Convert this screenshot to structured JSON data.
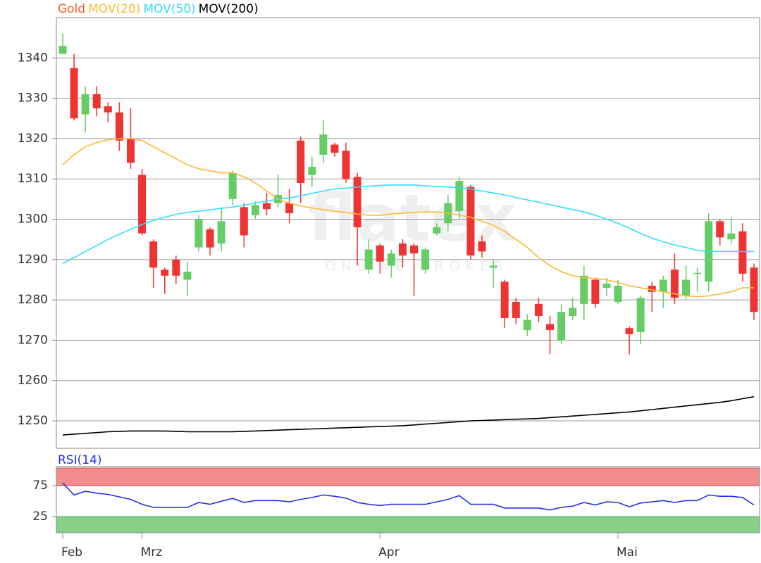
{
  "chart_data": [
    {
      "type": "candlestick",
      "categories": [
        "Feb",
        null,
        null,
        null,
        null,
        null,
        null,
        "Mrz",
        null,
        null,
        null,
        null,
        null,
        null,
        null,
        null,
        null,
        null,
        null,
        null,
        null,
        null,
        null,
        null,
        null,
        null,
        null,
        null,
        "Apr",
        null,
        null,
        null,
        null,
        null,
        null,
        null,
        null,
        null,
        null,
        null,
        null,
        null,
        null,
        null,
        null,
        null,
        null,
        null,
        null,
        "Mai",
        null,
        null,
        null,
        null,
        null,
        null,
        null,
        null,
        null,
        null,
        null,
        null
      ],
      "ylim": [
        1243.2,
        1350
      ],
      "yticks": [
        1250,
        1260,
        1270,
        1280,
        1290,
        1300,
        1310,
        1320,
        1330,
        1340
      ],
      "grid": true,
      "candles": {
        "name": "Gold",
        "color": "#ff5a1f",
        "up_color": "#66cc66",
        "down_color": "#ee3333",
        "open": [
          1341,
          1337.5,
          1326,
          1331,
          1328,
          1326.5,
          1320,
          1311,
          1294.5,
          1287.5,
          1290,
          1285,
          1293,
          1297.5,
          1294,
          1305,
          1303,
          1301,
          1304,
          1304,
          1304,
          1319.5,
          1311,
          1316,
          1318.5,
          1317,
          1310.5,
          1287.5,
          1293.5,
          1288.5,
          1294,
          1293.5,
          1287.5,
          1296.5,
          1299,
          1302,
          1308,
          1294.5,
          1288,
          1284.5,
          1279.5,
          1272.5,
          1279,
          1274,
          1270,
          1276,
          1279,
          1285,
          1283,
          1279.5,
          1273,
          1272,
          1283.5,
          1282,
          1287.5,
          1281,
          1286.5,
          1284.5,
          1299.5,
          1295,
          1297,
          1288
        ],
        "high": [
          1346,
          1341,
          1333,
          1333,
          1329,
          1329,
          1327.5,
          1312.5,
          1295,
          1288,
          1291,
          1289.5,
          1301,
          1298,
          1303,
          1312,
          1304,
          1304.5,
          1306.5,
          1311,
          1307.5,
          1320.5,
          1315.5,
          1324.5,
          1319,
          1319,
          1311.5,
          1295,
          1294,
          1292.5,
          1295,
          1294,
          1293,
          1299,
          1306,
          1310.5,
          1308.5,
          1296,
          1290,
          1285,
          1280.5,
          1276.5,
          1280.5,
          1276,
          1279,
          1280.5,
          1288.5,
          1285.5,
          1285.5,
          1285,
          1273.5,
          1281,
          1284.5,
          1286,
          1291.5,
          1288.5,
          1288,
          1301.5,
          1300,
          1300.5,
          1299,
          1289
        ],
        "low": [
          1341,
          1324.5,
          1321.5,
          1325.5,
          1324,
          1317,
          1312.5,
          1296,
          1283,
          1281.5,
          1284,
          1281,
          1292,
          1291,
          1292,
          1303.5,
          1293,
          1300,
          1301,
          1303,
          1299,
          1304,
          1308,
          1314,
          1315.5,
          1309,
          1288.5,
          1286.5,
          1286.5,
          1285.5,
          1288,
          1281,
          1286.5,
          1296,
          1297,
          1300,
          1290,
          1290.5,
          1283,
          1273,
          1274,
          1271,
          1274.5,
          1266.5,
          1269,
          1275,
          1275,
          1278,
          1281,
          1279,
          1266.5,
          1269,
          1277,
          1278,
          1279,
          1280,
          1282,
          1282,
          1293.5,
          1294,
          1284.5,
          1275
        ],
        "close": [
          1343,
          1325,
          1331,
          1327.5,
          1326.5,
          1319.5,
          1314,
          1296.5,
          1288,
          1286,
          1286,
          1287,
          1300,
          1293,
          1299.5,
          1311.5,
          1296,
          1303.5,
          1302.5,
          1306,
          1301.5,
          1309,
          1313,
          1321,
          1316.5,
          1310,
          1298,
          1292.5,
          1289.5,
          1291.5,
          1291,
          1291.5,
          1292.5,
          1298,
          1304,
          1309.5,
          1291,
          1292,
          1288.5,
          1275.5,
          1275.5,
          1275,
          1276,
          1272.5,
          1277,
          1278,
          1286,
          1279,
          1284,
          1283.5,
          1271.5,
          1280.5,
          1282,
          1285,
          1280.5,
          1285,
          1286.7,
          1299.5,
          1295.5,
          1296.5,
          1286.5,
          1277
        ]
      },
      "series": [
        {
          "name": "MOV(20)",
          "color": "#ffb833",
          "values": [
            1313.5,
            1316,
            1318,
            1319,
            1319.7,
            1320,
            1320,
            1319.5,
            1318,
            1316.5,
            1315,
            1313.5,
            1312.5,
            1312,
            1311.5,
            1311.5,
            1310.5,
            1309,
            1307,
            1305,
            1304,
            1303.3,
            1302.8,
            1302.4,
            1302,
            1301.7,
            1301.3,
            1301,
            1301,
            1301.3,
            1301.5,
            1301.7,
            1301.8,
            1301.8,
            1301.5,
            1301,
            1300.5,
            1299.5,
            1298.5,
            1297,
            1295,
            1293,
            1290.5,
            1288.5,
            1287,
            1286,
            1285.5,
            1285.3,
            1285,
            1284.3,
            1283.5,
            1283,
            1282.5,
            1282,
            1281.5,
            1281,
            1280.8,
            1281,
            1281.5,
            1282,
            1283,
            1283
          ]
        },
        {
          "name": "MOV(50)",
          "color": "#33ddff",
          "values": [
            1289,
            1290.5,
            1292,
            1293.5,
            1295,
            1296.3,
            1297.5,
            1298.7,
            1299.7,
            1300.5,
            1301.2,
            1301.7,
            1302,
            1302.3,
            1302.7,
            1303,
            1303.5,
            1304,
            1304.5,
            1305,
            1305.3,
            1305.8,
            1306.4,
            1307,
            1307.5,
            1307.7,
            1308,
            1308.2,
            1308.4,
            1308.5,
            1308.5,
            1308.5,
            1308.3,
            1308.1,
            1308,
            1307.8,
            1307.5,
            1307,
            1306.5,
            1306,
            1305.4,
            1304.8,
            1304.2,
            1303.6,
            1303,
            1302.4,
            1301.8,
            1301,
            1300,
            1299,
            1297.8,
            1296.5,
            1295.3,
            1294.4,
            1293.6,
            1293,
            1292.3,
            1292,
            1292,
            1292,
            1292,
            1292
          ]
        },
        {
          "name": "MOV(200)",
          "color": "#000000",
          "values": [
            1246.5,
            1246.7,
            1246.9,
            1247.1,
            1247.3,
            1247.4,
            1247.5,
            1247.5,
            1247.5,
            1247.5,
            1247.4,
            1247.3,
            1247.3,
            1247.3,
            1247.3,
            1247.3,
            1247.4,
            1247.5,
            1247.6,
            1247.7,
            1247.8,
            1247.9,
            1248,
            1248.1,
            1248.2,
            1248.3,
            1248.4,
            1248.5,
            1248.6,
            1248.7,
            1248.8,
            1249,
            1249.2,
            1249.4,
            1249.6,
            1249.8,
            1250,
            1250.1,
            1250.2,
            1250.3,
            1250.4,
            1250.5,
            1250.6,
            1250.8,
            1251,
            1251.2,
            1251.4,
            1251.6,
            1251.8,
            1252,
            1252.2,
            1252.5,
            1252.8,
            1253.1,
            1253.4,
            1253.7,
            1254,
            1254.3,
            1254.6,
            1255,
            1255.5,
            1256
          ]
        }
      ],
      "watermark": {
        "logo": "flatex",
        "tagline": "ONLINE BROKER"
      }
    },
    {
      "type": "line",
      "ylim": [
        -1,
        106
      ],
      "yticks": [
        25,
        75
      ],
      "upper_band_color": "#f28b8b",
      "lower_band_color": "#88d088",
      "series": [
        {
          "name": "RSI(14)",
          "color": "#2233ee",
          "values": [
            79.5,
            60,
            66,
            63,
            61,
            57,
            53,
            45,
            40,
            40,
            40,
            40,
            48,
            45,
            50,
            54.5,
            48,
            51,
            51,
            51,
            49,
            53,
            56,
            60,
            58,
            55,
            48,
            45,
            43,
            45,
            45,
            45,
            45,
            49,
            53,
            59,
            45,
            45,
            45,
            39,
            39,
            39,
            39,
            36,
            40,
            42,
            48,
            44,
            49,
            48,
            41,
            47,
            49,
            51,
            48,
            51,
            51,
            60,
            58,
            58,
            56,
            44
          ]
        }
      ]
    }
  ]
}
